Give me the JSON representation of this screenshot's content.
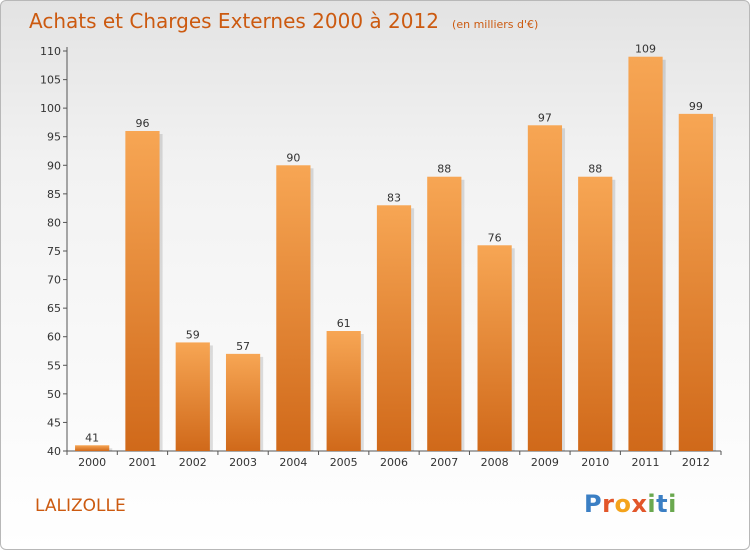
{
  "chart_data": {
    "type": "bar",
    "title": "Achats et Charges Externes 2000 à 2012",
    "unit_note": "(en milliers d'€)",
    "categories": [
      "2000",
      "2001",
      "2002",
      "2003",
      "2004",
      "2005",
      "2006",
      "2007",
      "2008",
      "2009",
      "2010",
      "2011",
      "2012"
    ],
    "values": [
      41,
      96,
      59,
      57,
      90,
      61,
      83,
      88,
      76,
      97,
      88,
      109,
      99
    ],
    "ylim": [
      40,
      110
    ],
    "yticks": [
      40,
      45,
      50,
      55,
      60,
      65,
      70,
      75,
      80,
      85,
      90,
      95,
      100,
      105,
      110
    ],
    "grid": false,
    "bar_color_top": "#f7a654",
    "bar_color_bottom": "#d0691a"
  },
  "commune": "LALIZOLLE",
  "brand": {
    "letters": [
      "P",
      "r",
      "o",
      "x",
      "i",
      "t",
      "i"
    ],
    "colors": [
      "#3b7fc4",
      "#e2562a",
      "#f4a31b",
      "#e2562a",
      "#6aa84f",
      "#3b7fc4",
      "#6aa84f"
    ]
  },
  "colors": {
    "accent": "#cc5a10"
  }
}
